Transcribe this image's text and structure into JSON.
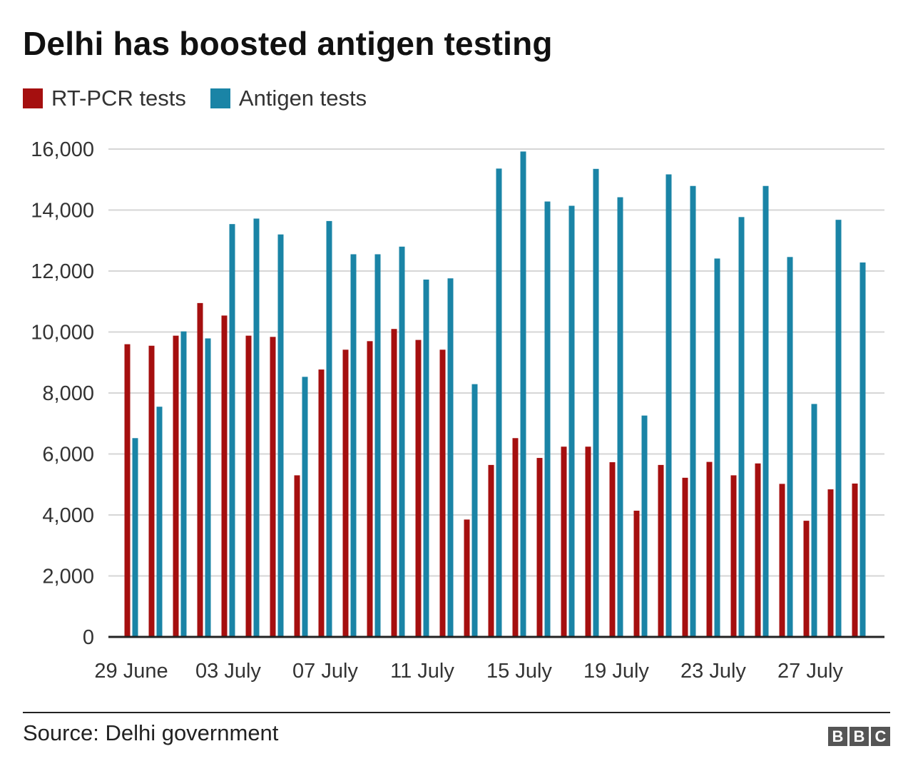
{
  "title": "Delhi has boosted antigen testing",
  "source": "Source: Delhi government",
  "logo": {
    "letters": [
      "B",
      "B",
      "C"
    ]
  },
  "colors": {
    "rtpcr": "#a50f0f",
    "antigen": "#1a84a6",
    "grid": "#d6d6d6",
    "axis": "#222222"
  },
  "chart_data": {
    "type": "bar",
    "title": "Delhi has boosted antigen testing",
    "xlabel": "",
    "ylabel": "",
    "ylim": [
      0,
      16000
    ],
    "yticks": [
      0,
      2000,
      4000,
      6000,
      8000,
      10000,
      12000,
      14000,
      16000
    ],
    "ytick_labels": [
      "0",
      "2,000",
      "4,000",
      "6,000",
      "8,000",
      "10,000",
      "12,000",
      "14,000",
      "16,000"
    ],
    "grid": true,
    "legend_position": "top-left",
    "categories": [
      "29 June",
      "30 June",
      "01 July",
      "02 July",
      "03 July",
      "04 July",
      "05 July",
      "06 July",
      "07 July",
      "08 July",
      "09 July",
      "10 July",
      "11 July",
      "12 July",
      "13 July",
      "14 July",
      "15 July",
      "16 July",
      "17 July",
      "18 July",
      "19 July",
      "20 July",
      "21 July",
      "22 July",
      "23 July",
      "24 July",
      "25 July",
      "26 July",
      "27 July",
      "28 July",
      "29 July"
    ],
    "xtick_labels": [
      {
        "index": 0,
        "label": "29 June"
      },
      {
        "index": 4,
        "label": "03 July"
      },
      {
        "index": 8,
        "label": "07 July"
      },
      {
        "index": 12,
        "label": "11 July"
      },
      {
        "index": 16,
        "label": "15 July"
      },
      {
        "index": 20,
        "label": "19 July"
      },
      {
        "index": 24,
        "label": "23 July"
      },
      {
        "index": 28,
        "label": "27 July"
      }
    ],
    "series": [
      {
        "name": "RT-PCR tests",
        "values": [
          9600,
          9550,
          9880,
          10950,
          10540,
          9880,
          9840,
          5300,
          8770,
          9420,
          9700,
          10100,
          9740,
          9420,
          3850,
          5640,
          6520,
          5870,
          6240,
          6240,
          5730,
          4140,
          5640,
          5220,
          5740,
          5300,
          5690,
          5020,
          3810,
          4840,
          5030
        ]
      },
      {
        "name": "Antigen tests",
        "values": [
          6520,
          7550,
          10020,
          9790,
          13540,
          13720,
          13200,
          8530,
          13640,
          12550,
          12550,
          12800,
          11720,
          11760,
          8290,
          15360,
          15920,
          14280,
          14140,
          15350,
          14420,
          7260,
          15170,
          14790,
          12410,
          13770,
          14790,
          12460,
          7640,
          13680,
          12280
        ]
      }
    ]
  }
}
